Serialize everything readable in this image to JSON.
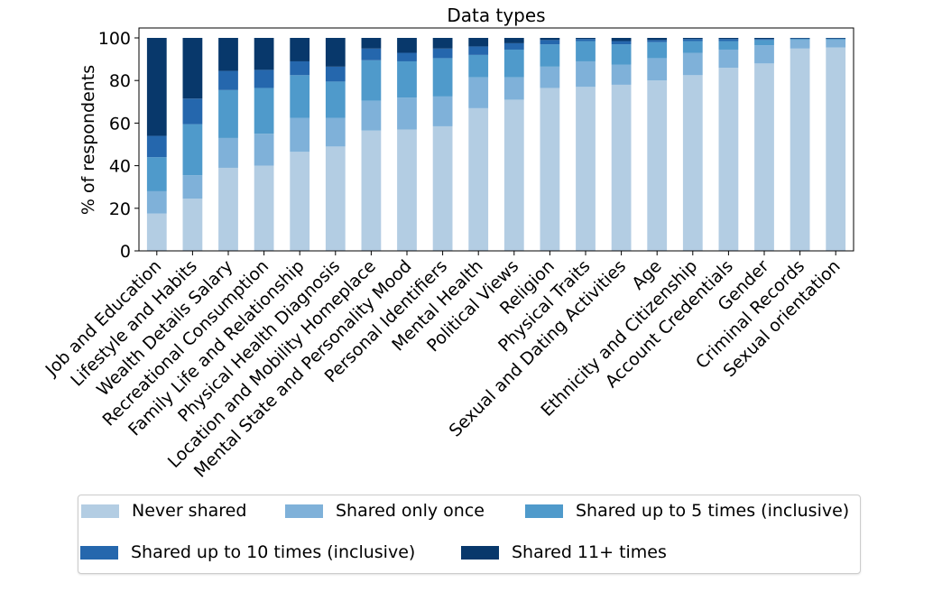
{
  "chart_data": {
    "type": "bar",
    "stacked": true,
    "title": "Data types",
    "xlabel": "",
    "ylabel": "% of respondents",
    "ylim": [
      0,
      100
    ],
    "yticks": [
      0,
      20,
      40,
      60,
      80,
      100
    ],
    "grid": false,
    "legend_placement": "bottom",
    "categories": [
      "Job and Education",
      "Lifestyle and Habits",
      "Wealth Details Salary",
      "Recreational Consumption",
      "Family Life and Relationship",
      "Physical Health Diagnosis",
      "Location and Mobility Homeplace",
      "Mental State and Personality Mood",
      "Personal Identifiers",
      "Mental Health",
      "Political Views",
      "Religion",
      "Physical Traits",
      "Sexual and Dating Activities",
      "Age",
      "Ethnicity and Citizenship",
      "Account Credentials",
      "Gender",
      "Criminal Records",
      "Sexual orientation"
    ],
    "series": [
      {
        "name": "Never shared",
        "color": "#b3cde3",
        "values": [
          17.5,
          24.5,
          39,
          40,
          46.5,
          49,
          56.5,
          57,
          58.5,
          67,
          71,
          76.5,
          77,
          78,
          80,
          82.5,
          86,
          88,
          95,
          95.5
        ]
      },
      {
        "name": "Shared only once",
        "color": "#7fb1d9",
        "values": [
          10.5,
          11,
          14,
          15,
          16,
          13.5,
          14,
          15,
          14,
          14.5,
          10.5,
          10,
          12,
          9.5,
          10.5,
          10.5,
          8.5,
          8.5,
          4,
          3.5
        ]
      },
      {
        "name": "Shared up to 5 times (inclusive)",
        "color": "#4f9acb",
        "values": [
          16,
          24,
          22.5,
          21.5,
          20,
          17,
          19,
          17,
          18,
          10.5,
          13,
          10.5,
          9.5,
          9.5,
          7.5,
          5.5,
          4,
          2.5,
          0.5,
          0.5
        ]
      },
      {
        "name": "Shared up to 10 times (inclusive)",
        "color": "#2567ad",
        "values": [
          10,
          12,
          9,
          8.5,
          6.5,
          7,
          5.5,
          4,
          4.5,
          4,
          3,
          2,
          1,
          1.5,
          1,
          1,
          1,
          0.5,
          0.25,
          0.25
        ]
      },
      {
        "name": "Shared 11+ times",
        "color": "#08386b",
        "values": [
          46,
          28.5,
          15.5,
          15,
          11,
          13.5,
          5,
          7,
          5,
          4,
          2.5,
          1,
          0.5,
          1.5,
          1,
          0.5,
          0.5,
          0.5,
          0.25,
          0.25
        ]
      }
    ]
  }
}
